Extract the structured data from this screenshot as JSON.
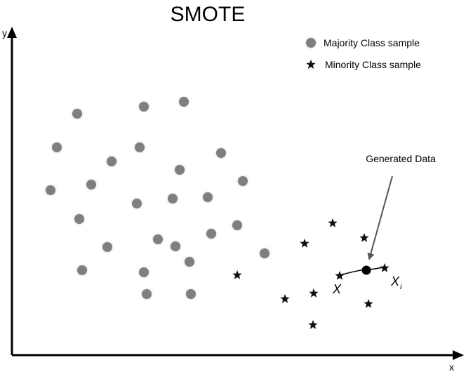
{
  "title": "SMOTE",
  "axes": {
    "x_label": "x",
    "y_label": "y"
  },
  "legend": {
    "majority_label": "Majority Class sample",
    "minority_label": "Minority Class sample"
  },
  "annotation": {
    "generated_label": "Generated Data",
    "x_label": "X",
    "xi_label": "X",
    "xi_subscript": "i"
  },
  "colors": {
    "majority": "#7f7f7f",
    "minority": "#111111",
    "axis": "#000000",
    "arrow": "#555555",
    "generated": "#000000"
  },
  "legend_icons": {
    "majority": "gray-dot-icon",
    "minority": "star-icon"
  }
}
